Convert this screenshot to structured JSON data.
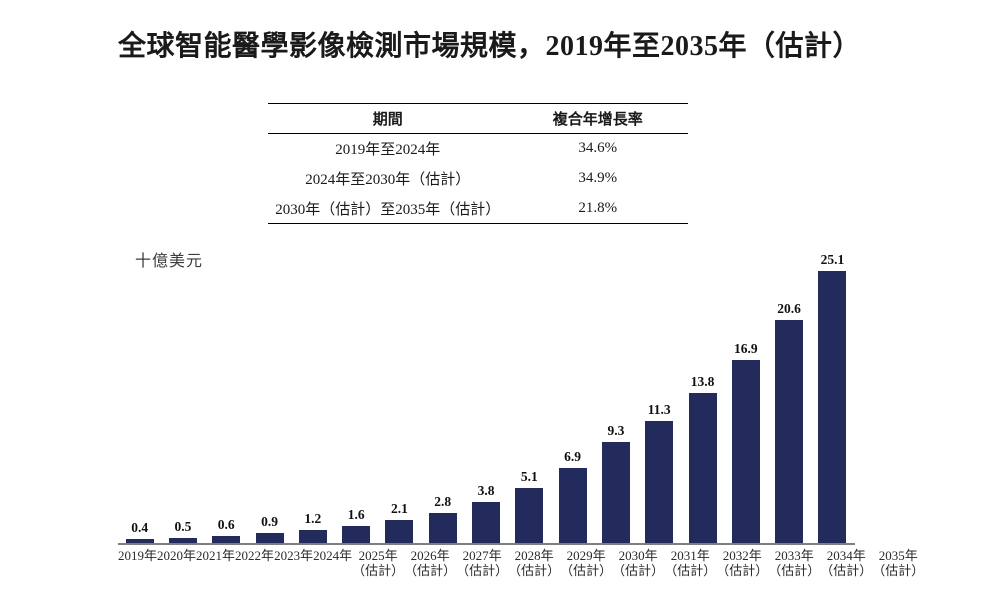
{
  "title": "全球智能醫學影像檢測市場規模，2019年至2035年（估計）",
  "cagr_table": {
    "headers": {
      "period": "期間",
      "cagr": "複合年增長率"
    },
    "rows": [
      {
        "period": "2019年至2024年",
        "cagr": "34.6%"
      },
      {
        "period": "2024年至2030年（估計）",
        "cagr": "34.9%"
      },
      {
        "period": "2030年（估計）至2035年（估計）",
        "cagr": "21.8%"
      }
    ]
  },
  "chart_data": {
    "type": "bar",
    "title": "全球智能醫學影像檢測市場規模，2019年至2035年（估計）",
    "unit_label": "十億美元",
    "categories": [
      "2019年",
      "2020年",
      "2021年",
      "2022年",
      "2023年",
      "2024年",
      "2025年",
      "2026年",
      "2027年",
      "2028年",
      "2029年",
      "2030年",
      "2031年",
      "2032年",
      "2033年",
      "2034年",
      "2035年"
    ],
    "notes": [
      "",
      "",
      "",
      "",
      "",
      "",
      "（估計）",
      "（估計）",
      "（估計）",
      "（估計）",
      "（估計）",
      "（估計）",
      "（估計）",
      "（估計）",
      "（估計）",
      "（估計）",
      "（估計）"
    ],
    "values": [
      0.4,
      0.5,
      0.6,
      0.9,
      1.2,
      1.6,
      2.1,
      2.8,
      3.8,
      5.1,
      6.9,
      9.3,
      11.3,
      13.8,
      16.9,
      20.6,
      25.1
    ],
    "value_labels": [
      "0.4",
      "0.5",
      "0.6",
      "0.9",
      "1.2",
      "1.6",
      "2.1",
      "2.8",
      "3.8",
      "5.1",
      "6.9",
      "9.3",
      "11.3",
      "13.8",
      "16.9",
      "20.6",
      "25.1"
    ],
    "ylim": [
      0,
      26
    ],
    "grid": false,
    "legend": false,
    "bar_color": "#232a5c",
    "axis_color": "#7e7e7e"
  }
}
